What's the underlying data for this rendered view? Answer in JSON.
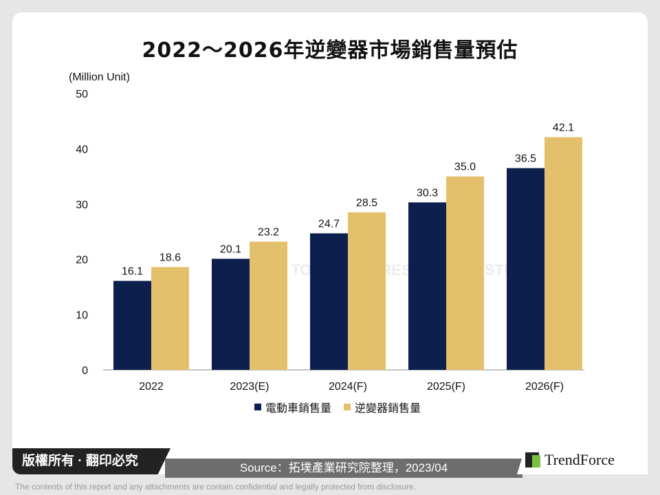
{
  "chart_data": {
    "type": "bar",
    "title": "2022～2026年逆變器市場銷售量預估",
    "ylabel": "(Million Unit)",
    "ylim": [
      0,
      50
    ],
    "yticks": [
      0,
      10,
      20,
      30,
      40,
      50
    ],
    "categories": [
      "2022",
      "2023(E)",
      "2024(F)",
      "2025(F)",
      "2026(F)"
    ],
    "series": [
      {
        "name": "電動車銷售量",
        "color": "#0d1f4d",
        "values": [
          16.1,
          20.1,
          24.7,
          30.3,
          36.5
        ]
      },
      {
        "name": "逆變器銷售量",
        "color": "#e5c06c",
        "values": [
          18.6,
          23.2,
          28.5,
          35.0,
          42.1
        ]
      }
    ],
    "legend": "bottom",
    "grid": false
  },
  "footer": {
    "copyright": "版權所有 · 翻印必究",
    "source": "Source：拓墣產業研究院整理，2023/04",
    "logo": "TRENDFORCE",
    "watermark": "TOPOLOGY RESEARCH INSTITUTE",
    "disclaimer": "The contents of this report and any attachments are contain confidential and legally protected from disclosure."
  }
}
